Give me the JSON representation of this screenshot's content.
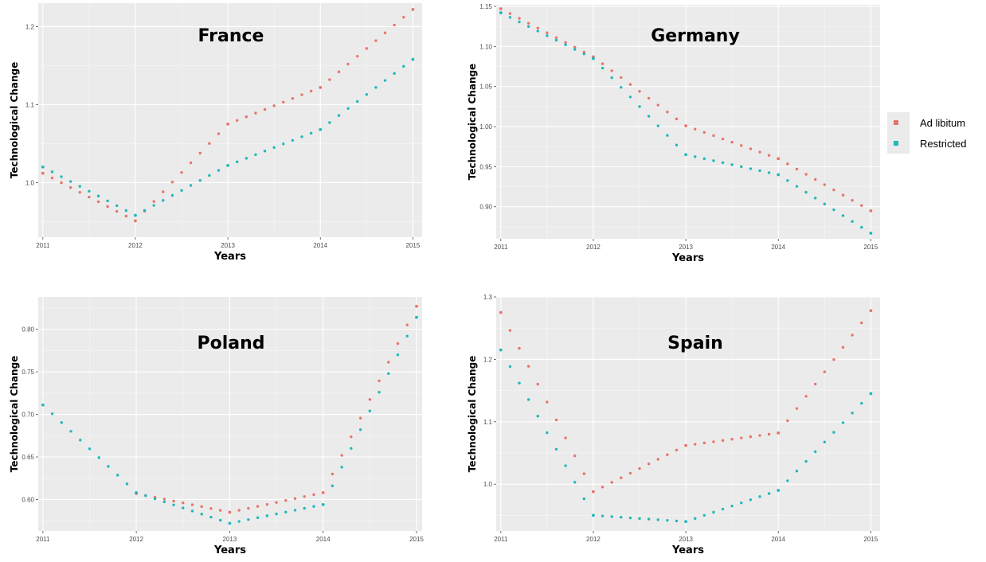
{
  "legend": {
    "entries": [
      {
        "label": "Ad libitum",
        "color": "#e8736b"
      },
      {
        "label": "Restricted",
        "color": "#1fb8b9"
      }
    ]
  },
  "chart_data": [
    {
      "type": "scatter",
      "title": "France",
      "xlabel": "Years",
      "ylabel": "Technological Change",
      "x": [
        2011,
        2012,
        2013,
        2014,
        2015
      ],
      "x_ticks": [
        "2011",
        "2012",
        "2013",
        "2014",
        "2015"
      ],
      "y_ticks": [
        1.0,
        1.1,
        1.2
      ],
      "y_tick_labels": [
        "1.0",
        "1.1",
        "1.2"
      ],
      "xlim": [
        2010.95,
        2015.1
      ],
      "ylim": [
        0.93,
        1.23
      ],
      "grid": true,
      "series": [
        {
          "name": "Ad libitum",
          "values": [
            1.012,
            0.951,
            1.075,
            1.122,
            1.222
          ]
        },
        {
          "name": "Restricted",
          "values": [
            1.02,
            0.958,
            1.022,
            1.068,
            1.158
          ]
        }
      ]
    },
    {
      "type": "scatter",
      "title": "Germany",
      "xlabel": "Years",
      "ylabel": "Technological Change",
      "x": [
        2011,
        2012,
        2013,
        2014,
        2015
      ],
      "x_ticks": [
        "2011",
        "2012",
        "2013",
        "2014",
        "2015"
      ],
      "y_ticks": [
        0.9,
        0.95,
        1.0,
        1.05,
        1.1,
        1.15
      ],
      "y_tick_labels": [
        "0.90",
        "0.95",
        "1.00",
        "1.05",
        "1.10",
        "1.15"
      ],
      "xlim": [
        2010.95,
        2015.1
      ],
      "ylim": [
        0.86,
        1.152
      ],
      "grid": true,
      "series": [
        {
          "name": "Ad libitum",
          "values": [
            1.147,
            1.087,
            1.001,
            0.96,
            0.895
          ]
        },
        {
          "name": "Restricted",
          "values": [
            1.142,
            1.085,
            0.965,
            0.94,
            0.867
          ]
        }
      ]
    },
    {
      "type": "scatter",
      "title": "Poland",
      "xlabel": "Years",
      "ylabel": "Technological Change",
      "x": [
        2011,
        2012,
        2013,
        2014,
        2015
      ],
      "x_ticks": [
        "2011",
        "2012",
        "2013",
        "2014",
        "2015"
      ],
      "y_ticks": [
        0.6,
        0.65,
        0.7,
        0.75,
        0.8
      ],
      "y_tick_labels": [
        "0.60",
        "0.65",
        "0.70",
        "0.75",
        "0.80"
      ],
      "xlim": [
        2010.95,
        2015.06
      ],
      "ylim": [
        0.563,
        0.838
      ],
      "grid": true,
      "series": [
        {
          "name": "Ad libitum",
          "values": [
            null,
            0.607,
            0.585,
            0.608,
            0.827
          ]
        },
        {
          "name": "Restricted",
          "values": [
            0.711,
            0.608,
            0.572,
            0.594,
            0.814
          ]
        }
      ]
    },
    {
      "type": "scatter",
      "title": "Spain",
      "xlabel": "Years",
      "ylabel": "Technological Change",
      "x": [
        2011,
        2012,
        2013,
        2014,
        2015
      ],
      "x_ticks": [
        "2011",
        "2012",
        "2013",
        "2014",
        "2015"
      ],
      "y_ticks": [
        1.0,
        1.1,
        1.2,
        1.3
      ],
      "y_tick_labels": [
        "1.0",
        "1.1",
        "1.2",
        "1.3"
      ],
      "xlim": [
        2010.95,
        2015.1
      ],
      "ylim": [
        0.925,
        1.3
      ],
      "grid": true,
      "series": [
        {
          "name": "Ad libitum",
          "values": [
            1.275,
            0.988,
            1.062,
            1.082,
            1.278
          ]
        },
        {
          "name": "Restricted",
          "values": [
            1.215,
            0.95,
            0.94,
            0.99,
            1.145
          ]
        }
      ]
    }
  ]
}
